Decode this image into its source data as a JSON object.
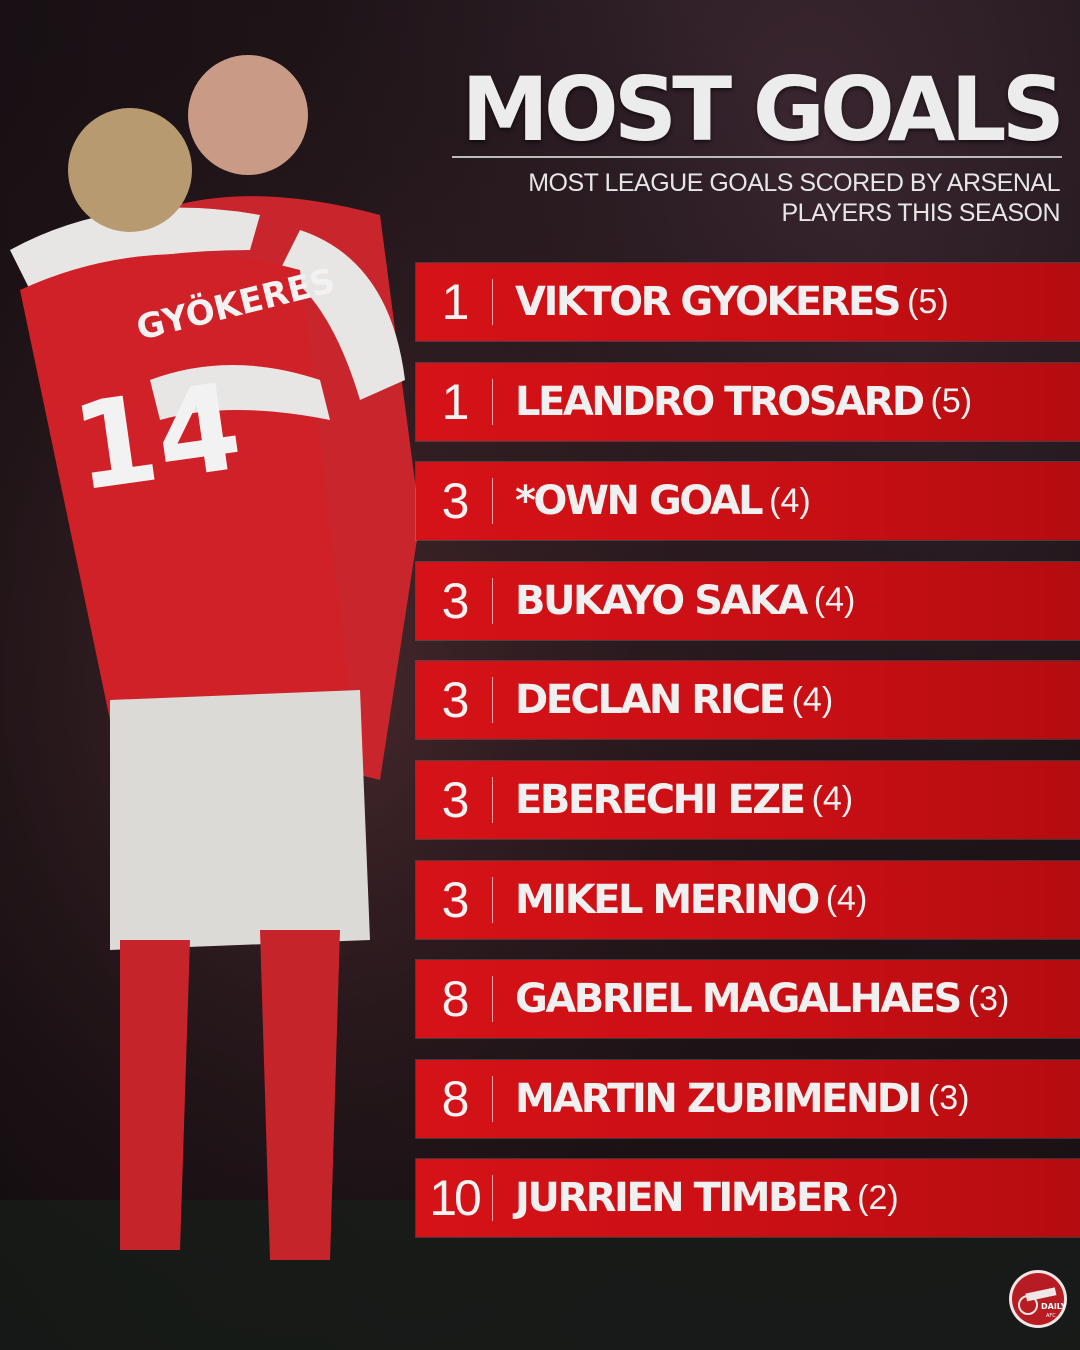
{
  "header": {
    "title": "MOST GOALS",
    "subtitle": "MOST LEAGUE GOALS SCORED BY ARSENAL PLAYERS THIS SEASON"
  },
  "rows": [
    {
      "rank": "1",
      "name": "VIKTOR GYOKERES",
      "goals": "(5)"
    },
    {
      "rank": "1",
      "name": "LEANDRO TROSARD",
      "goals": "(5)"
    },
    {
      "rank": "3",
      "name": "*OWN GOAL",
      "goals": "(4)"
    },
    {
      "rank": "3",
      "name": "BUKAYO SAKA",
      "goals": "(4)"
    },
    {
      "rank": "3",
      "name": "DECLAN RICE",
      "goals": "(4)"
    },
    {
      "rank": "3",
      "name": "EBERECHI EZE",
      "goals": "(4)"
    },
    {
      "rank": "3",
      "name": "MIKEL MERINO",
      "goals": "(4)"
    },
    {
      "rank": "8",
      "name": "GABRIEL MAGALHAES",
      "goals": "(3)"
    },
    {
      "rank": "8",
      "name": "MARTIN ZUBIMENDI",
      "goals": "(3)"
    },
    {
      "rank": "10",
      "name": "JURRIEN TIMBER",
      "goals": "(2)"
    }
  ],
  "photo": {
    "jersey_name": "GYÖKERES",
    "jersey_number": "14"
  },
  "logo": {
    "text": "DAILY AFC"
  },
  "colors": {
    "row_red": "#d51217",
    "background": "#1d1418",
    "text": "#f0f0f0"
  }
}
